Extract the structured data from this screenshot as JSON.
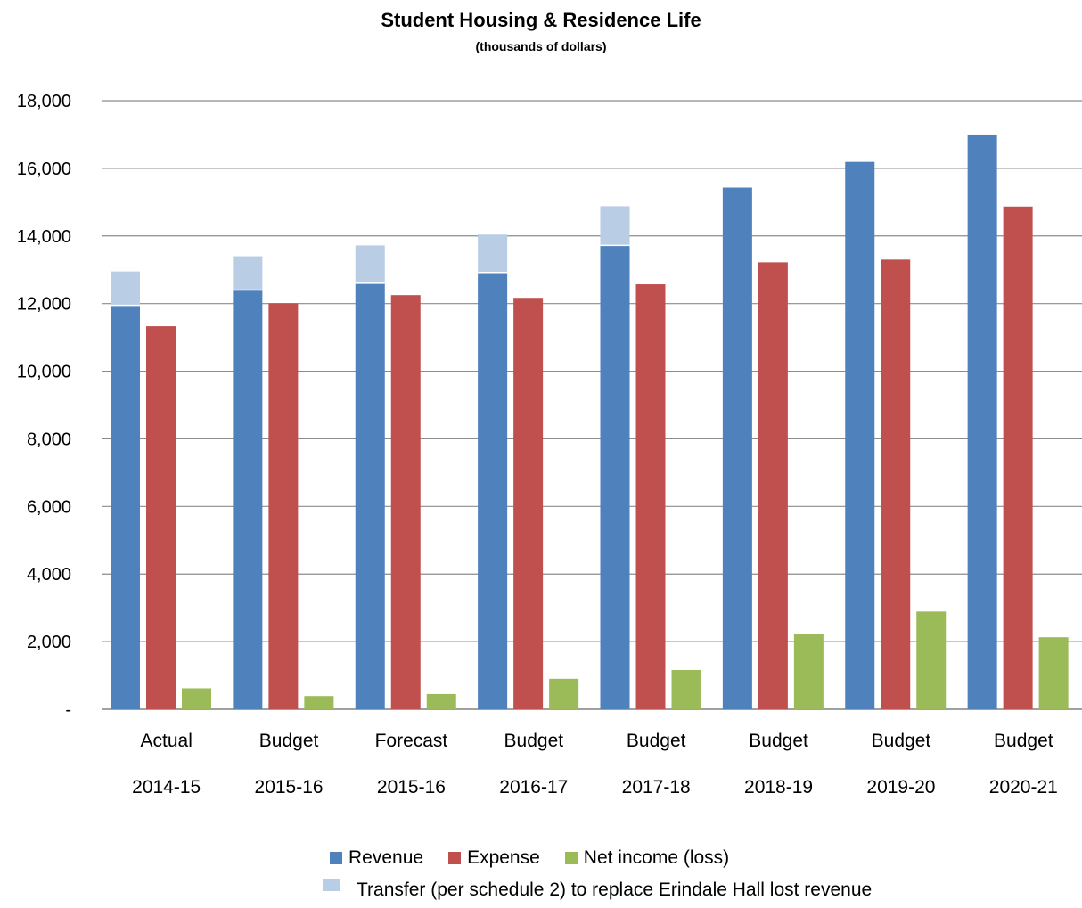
{
  "chart_data": {
    "type": "bar",
    "title": "Student Housing & Residence Life",
    "subtitle": "(thousands of dollars)",
    "categories": [
      [
        "Actual",
        "2014-15"
      ],
      [
        "Budget",
        "2015-16"
      ],
      [
        "Forecast",
        "2015-16"
      ],
      [
        "Budget",
        "2016-17"
      ],
      [
        "Budget",
        "2017-18"
      ],
      [
        "Budget",
        "2018-19"
      ],
      [
        "Budget",
        "2019-20"
      ],
      [
        "Budget",
        "2020-21"
      ]
    ],
    "ylim": [
      0,
      18000
    ],
    "yticks": [
      0,
      2000,
      4000,
      6000,
      8000,
      10000,
      12000,
      14000,
      16000,
      18000
    ],
    "ytick_labels": [
      "-",
      "2,000",
      "4,000",
      "6,000",
      "8,000",
      "10,000",
      "12,000",
      "14,000",
      "16,000",
      "18,000"
    ],
    "grid": true,
    "legend_position": "bottom",
    "series": [
      {
        "name": "Revenue",
        "color": "#4f81bd",
        "values": [
          11950,
          12400,
          12600,
          12920,
          13720,
          15430,
          16190,
          17000
        ]
      },
      {
        "name": "Transfer (per schedule 2) to replace Erindale Hall lost revenue",
        "color": "#b9cde5",
        "stacked_on": "Revenue",
        "values": [
          1000,
          1000,
          1120,
          1120,
          1160,
          0,
          0,
          0
        ]
      },
      {
        "name": "Expense",
        "color": "#c0504d",
        "values": [
          11330,
          12010,
          12250,
          12170,
          12570,
          13220,
          13300,
          14870
        ]
      },
      {
        "name": "Net income (loss)",
        "color": "#9bbb59",
        "values": [
          620,
          390,
          450,
          900,
          1160,
          2220,
          2890,
          2130
        ]
      }
    ]
  }
}
